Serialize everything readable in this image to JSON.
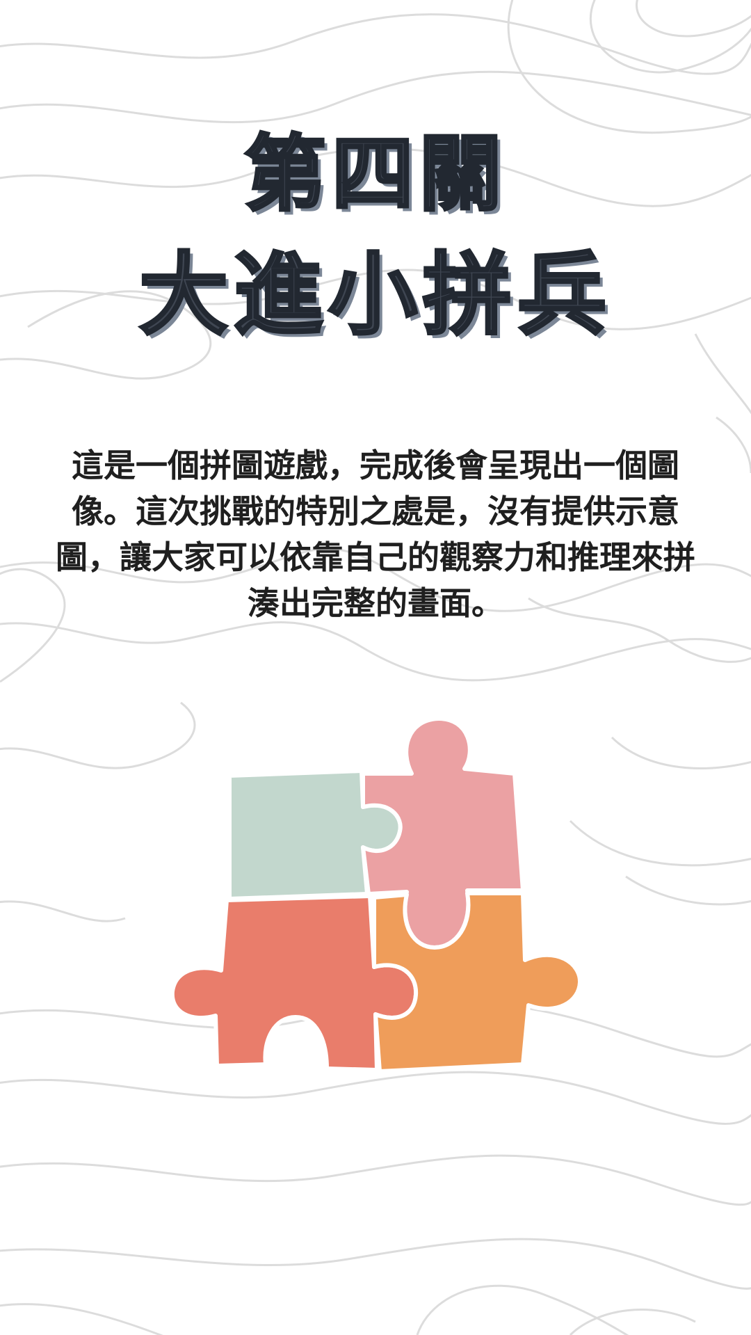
{
  "title": {
    "line1": "第四關",
    "line2": "大進小拼兵"
  },
  "description": "這是一個拼圖遊戲，完成後會呈現出一個圖像。這次挑戰的特別之處是，沒有提供示意圖，讓大家可以依靠自己的觀察力和推理來拼湊出完整的畫面。",
  "colors": {
    "background": "#ffffff",
    "background_lines": "#dcdcdc",
    "title_fill": "#3f4652",
    "title_shadow": "#7c8797",
    "text": "#1f1f1f",
    "piece_green": "#c2d7cd",
    "piece_pink": "#eba1a3",
    "piece_red": "#e97d6b",
    "piece_orange": "#ef9d5a"
  },
  "icons": [
    "topographic-lines-background",
    "puzzle-pieces-icon"
  ]
}
